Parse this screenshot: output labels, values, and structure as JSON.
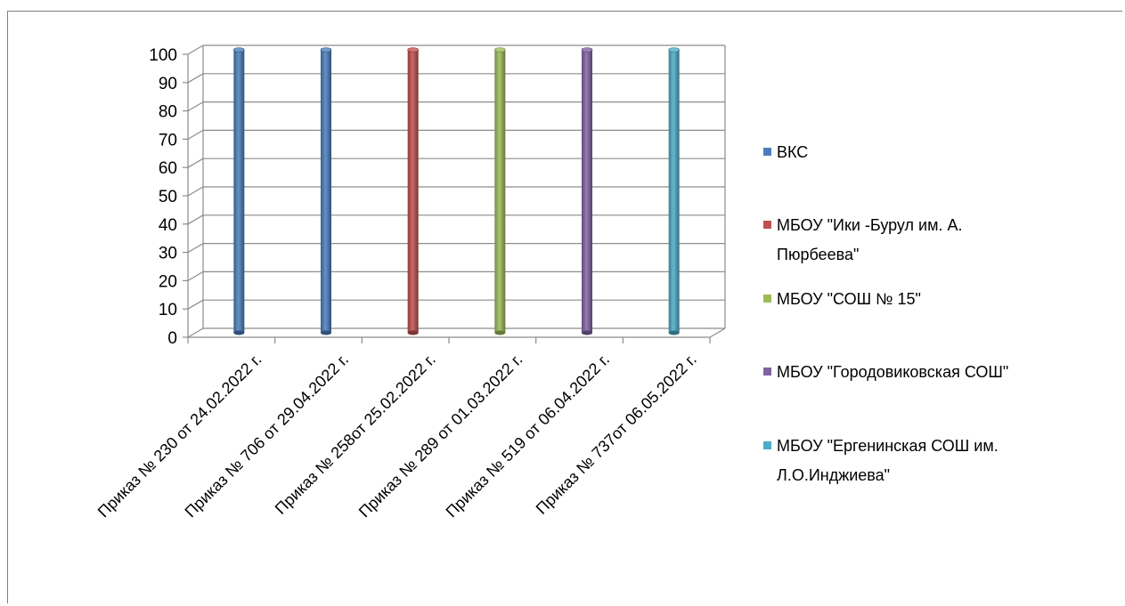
{
  "chart_data": {
    "type": "bar",
    "categories": [
      "Приказ № 230 от 24.02.2022 г.",
      "Приказ № 706 от 29.04.2022 г.",
      "Приказ № 258от 25.02.2022 г.",
      "Приказ № 289 от 01.03.2022 г.",
      "Приказ № 519 от 06.04.2022 г.",
      "Приказ № 737от  06.05.2022 г."
    ],
    "series": [
      {
        "name": "ВКС",
        "color": "#4a7ebb",
        "values": [
          100,
          100,
          null,
          null,
          null,
          null
        ]
      },
      {
        "name": "МБОУ \"Ики -Бурул им. А. Пюрбеева\"",
        "name_lines": [
          "МБОУ \"Ики -Бурул им. А.",
          "Пюрбеева\""
        ],
        "color": "#c0504d",
        "values": [
          null,
          null,
          100,
          null,
          null,
          null
        ]
      },
      {
        "name": "МБОУ \"СОШ № 15\"",
        "name_lines": [
          "МБОУ \"СОШ № 15\""
        ],
        "color": "#9bbb59",
        "values": [
          null,
          null,
          null,
          100,
          null,
          null
        ]
      },
      {
        "name": "МБОУ \"Городовиковская СОШ\"",
        "name_lines": [
          "МБОУ \"Городовиковская СОШ\""
        ],
        "color": "#8064a2",
        "values": [
          null,
          null,
          null,
          null,
          100,
          null
        ]
      },
      {
        "name": "МБОУ \"Ергенинская СОШ им. Л.О.Инджиева\"",
        "name_lines": [
          "МБОУ \"Ергенинская СОШ им.",
          "Л.О.Инджиева\""
        ],
        "color": "#4bacc6",
        "values": [
          null,
          null,
          null,
          null,
          null,
          100
        ]
      }
    ],
    "yticks": [
      "0",
      "10",
      "20",
      "30",
      "40",
      "50",
      "60",
      "70",
      "80",
      "90",
      "100"
    ],
    "ylim": [
      0,
      100
    ],
    "grid": true,
    "legend": "right",
    "title": "",
    "xlabel": "",
    "ylabel": ""
  }
}
